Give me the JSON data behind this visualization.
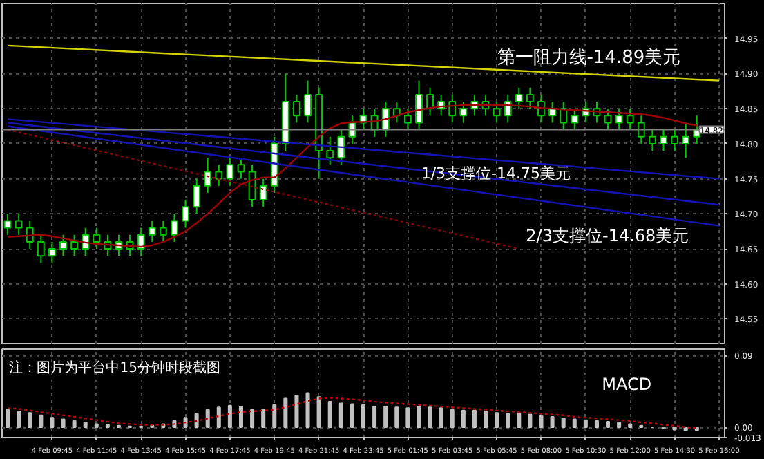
{
  "chart_data": [
    {
      "type": "candlestick",
      "tick_labels": "y",
      "grid": true,
      "color": "#00c800",
      "categories": [
        null,
        null,
        null,
        null,
        null,
        null,
        null,
        null,
        null,
        null,
        null,
        null,
        null,
        null,
        null,
        null,
        null,
        null,
        null,
        null,
        null,
        null,
        null,
        null,
        null,
        null,
        null,
        null,
        null,
        null,
        null,
        null,
        null,
        null,
        null,
        null,
        null,
        null,
        null,
        null,
        null,
        null,
        null,
        null,
        null,
        null,
        null,
        null,
        null,
        null,
        null,
        null,
        null,
        null,
        null,
        null,
        null,
        null,
        null,
        null,
        null,
        null,
        null,
        null,
        null
      ],
      "ohlc": [
        [
          14.68,
          14.7,
          14.67,
          14.69
        ],
        [
          14.69,
          14.7,
          14.67,
          14.68
        ],
        [
          14.68,
          14.69,
          14.65,
          14.66
        ],
        [
          14.66,
          14.67,
          14.63,
          14.64
        ],
        [
          14.64,
          14.66,
          14.63,
          14.65
        ],
        [
          14.65,
          14.67,
          14.64,
          14.66
        ],
        [
          14.66,
          14.67,
          14.64,
          14.65
        ],
        [
          14.65,
          14.68,
          14.64,
          14.67
        ],
        [
          14.67,
          14.68,
          14.65,
          14.66
        ],
        [
          14.66,
          14.67,
          14.64,
          14.65
        ],
        [
          14.65,
          14.67,
          14.64,
          14.66
        ],
        [
          14.66,
          14.67,
          14.64,
          14.65
        ],
        [
          14.65,
          14.68,
          14.64,
          14.67
        ],
        [
          14.67,
          14.69,
          14.66,
          14.68
        ],
        [
          14.68,
          14.69,
          14.66,
          14.67
        ],
        [
          14.67,
          14.7,
          14.66,
          14.69
        ],
        [
          14.69,
          14.72,
          14.68,
          14.71
        ],
        [
          14.71,
          14.75,
          14.7,
          14.74
        ],
        [
          14.74,
          14.78,
          14.73,
          14.76
        ],
        [
          14.76,
          14.77,
          14.74,
          14.75
        ],
        [
          14.75,
          14.78,
          14.74,
          14.77
        ],
        [
          14.77,
          14.78,
          14.75,
          14.76
        ],
        [
          14.76,
          14.77,
          14.71,
          14.72
        ],
        [
          14.72,
          14.75,
          14.71,
          14.74
        ],
        [
          14.74,
          14.81,
          14.73,
          14.8
        ],
        [
          14.8,
          14.9,
          14.79,
          14.86
        ],
        [
          14.86,
          14.87,
          14.83,
          14.84
        ],
        [
          14.84,
          14.89,
          14.83,
          14.87
        ],
        [
          14.87,
          14.88,
          14.75,
          14.79
        ],
        [
          14.79,
          14.81,
          14.77,
          14.78
        ],
        [
          14.78,
          14.82,
          14.77,
          14.81
        ],
        [
          14.81,
          14.84,
          14.8,
          14.83
        ],
        [
          14.83,
          14.85,
          14.82,
          14.84
        ],
        [
          14.84,
          14.85,
          14.81,
          14.82
        ],
        [
          14.82,
          14.86,
          14.81,
          14.85
        ],
        [
          14.85,
          14.86,
          14.83,
          14.84
        ],
        [
          14.84,
          14.85,
          14.82,
          14.83
        ],
        [
          14.83,
          14.89,
          14.82,
          14.87
        ],
        [
          14.87,
          14.88,
          14.84,
          14.85
        ],
        [
          14.85,
          14.87,
          14.84,
          14.86
        ],
        [
          14.86,
          14.87,
          14.83,
          14.84
        ],
        [
          14.84,
          14.86,
          14.83,
          14.85
        ],
        [
          14.85,
          14.87,
          14.84,
          14.86
        ],
        [
          14.86,
          14.87,
          14.84,
          14.85
        ],
        [
          14.85,
          14.86,
          14.83,
          14.84
        ],
        [
          14.84,
          14.87,
          14.83,
          14.86
        ],
        [
          14.86,
          14.88,
          14.85,
          14.87
        ],
        [
          14.87,
          14.88,
          14.85,
          14.86
        ],
        [
          14.86,
          14.87,
          14.83,
          14.84
        ],
        [
          14.84,
          14.86,
          14.83,
          14.85
        ],
        [
          14.85,
          14.86,
          14.82,
          14.83
        ],
        [
          14.83,
          14.85,
          14.82,
          14.84
        ],
        [
          14.84,
          14.86,
          14.83,
          14.85
        ],
        [
          14.85,
          14.86,
          14.83,
          14.84
        ],
        [
          14.84,
          14.85,
          14.82,
          14.83
        ],
        [
          14.83,
          14.85,
          14.82,
          14.84
        ],
        [
          14.84,
          14.85,
          14.82,
          14.83
        ],
        [
          14.83,
          14.84,
          14.8,
          14.81
        ],
        [
          14.81,
          14.82,
          14.79,
          14.8
        ],
        [
          14.8,
          14.82,
          14.79,
          14.81
        ],
        [
          14.81,
          14.82,
          14.79,
          14.8
        ],
        [
          14.8,
          14.83,
          14.78,
          14.81
        ],
        [
          14.81,
          14.84,
          14.8,
          14.82
        ],
        null,
        null
      ],
      "series": [
        {
          "type": "line",
          "color": "#a00000",
          "values": [
            14.667,
            14.668,
            14.669,
            14.67,
            14.668,
            14.665,
            14.662,
            14.659,
            14.657,
            14.656,
            14.655,
            14.654,
            14.653,
            14.655,
            14.66,
            14.667,
            14.675,
            14.687,
            14.7,
            14.715,
            14.73,
            14.742,
            14.748,
            14.752,
            14.752,
            14.765,
            14.78,
            14.795,
            14.81,
            14.822,
            14.829,
            14.831,
            14.831,
            14.832,
            14.835,
            14.84,
            14.845,
            14.848,
            14.851,
            14.853,
            14.854,
            14.855,
            14.855,
            14.855,
            14.855,
            14.855,
            14.854,
            14.853,
            14.851,
            14.85,
            14.849,
            14.848,
            14.847,
            14.846,
            14.845,
            14.844,
            14.843,
            14.842,
            14.84,
            14.837,
            14.833,
            14.829,
            14.826,
            null,
            null
          ]
        },
        {
          "type": "line",
          "color": "#d4d400",
          "values": [
            14.94,
            null,
            null,
            null,
            null,
            null,
            null,
            null,
            null,
            null,
            null,
            null,
            null,
            null,
            null,
            null,
            null,
            null,
            null,
            null,
            null,
            null,
            null,
            null,
            null,
            null,
            null,
            null,
            null,
            null,
            null,
            null,
            null,
            null,
            null,
            null,
            null,
            null,
            null,
            null,
            null,
            null,
            null,
            null,
            null,
            null,
            null,
            null,
            null,
            null,
            null,
            null,
            null,
            null,
            null,
            null,
            null,
            null,
            null,
            null,
            null,
            null,
            null,
            null,
            14.89
          ]
        },
        {
          "type": "line",
          "color": "#1414b4",
          "values": [
            14.835,
            null,
            null,
            null,
            null,
            null,
            null,
            null,
            null,
            null,
            null,
            null,
            null,
            null,
            null,
            null,
            null,
            null,
            null,
            null,
            null,
            null,
            null,
            null,
            null,
            null,
            null,
            null,
            null,
            null,
            null,
            null,
            null,
            null,
            null,
            null,
            null,
            null,
            null,
            null,
            null,
            null,
            null,
            null,
            null,
            null,
            null,
            null,
            null,
            null,
            null,
            null,
            null,
            null,
            null,
            null,
            null,
            null,
            null,
            null,
            null,
            null,
            null,
            null,
            14.75
          ]
        },
        {
          "type": "line",
          "color": "#1414b4",
          "values": [
            14.83,
            null,
            null,
            null,
            null,
            null,
            null,
            null,
            null,
            null,
            null,
            null,
            null,
            null,
            null,
            null,
            null,
            null,
            null,
            null,
            null,
            null,
            null,
            null,
            null,
            null,
            null,
            null,
            null,
            null,
            null,
            null,
            null,
            null,
            null,
            null,
            null,
            null,
            null,
            null,
            null,
            null,
            null,
            null,
            null,
            null,
            null,
            null,
            null,
            null,
            null,
            null,
            null,
            null,
            null,
            null,
            null,
            null,
            null,
            null,
            null,
            null,
            null,
            null,
            14.713
          ]
        },
        {
          "type": "line",
          "color": "#1414b4",
          "values": [
            14.825,
            null,
            null,
            null,
            null,
            null,
            null,
            null,
            null,
            null,
            null,
            null,
            null,
            null,
            null,
            null,
            null,
            null,
            null,
            null,
            null,
            null,
            null,
            null,
            null,
            null,
            null,
            null,
            null,
            null,
            null,
            null,
            null,
            null,
            null,
            null,
            null,
            null,
            null,
            null,
            null,
            null,
            null,
            null,
            null,
            null,
            null,
            null,
            null,
            null,
            null,
            null,
            null,
            null,
            null,
            null,
            null,
            null,
            null,
            null,
            null,
            null,
            null,
            null,
            14.683
          ]
        },
        {
          "type": "line",
          "color": "#8b0000",
          "line_style": "dotted",
          "values": [
            14.82,
            null,
            null,
            null,
            null,
            null,
            null,
            null,
            null,
            null,
            null,
            null,
            null,
            null,
            null,
            null,
            null,
            null,
            null,
            null,
            null,
            null,
            null,
            null,
            null,
            null,
            null,
            null,
            null,
            null,
            null,
            null,
            null,
            null,
            null,
            null,
            null,
            null,
            null,
            null,
            null,
            null,
            null,
            null,
            null,
            null,
            14.65,
            null,
            null,
            null,
            null,
            null,
            null,
            null,
            null,
            null,
            null,
            null,
            null,
            null,
            null,
            null,
            null,
            null,
            null
          ]
        }
      ],
      "ylim": [
        14.515,
        15.0
      ],
      "yticks": [
        14.55,
        {
          "value": 14.6,
          "label": "14.60"
        },
        14.65,
        {
          "value": 14.7,
          "label": "14.70"
        },
        14.75,
        {
          "value": 14.8,
          "label": "14.80"
        },
        14.85,
        {
          "value": 14.9,
          "label": "14.90"
        },
        14.95
      ],
      "ref_lines": [
        {
          "axis": "y",
          "value": 14.82,
          "label": "14.82",
          "color": "#808080"
        }
      ],
      "annotations": [
        "第一阻力线-14.89美元",
        "1/3支撑位-14.75美元",
        "2/3支撑位-14.68美元"
      ]
    },
    {
      "type": "bar",
      "title": "MACD",
      "grid": true,
      "categories": [
        null,
        null,
        null,
        null,
        "4 Feb 09:45",
        null,
        null,
        null,
        "4 Feb 11:45",
        null,
        null,
        null,
        "4 Feb 13:45",
        null,
        null,
        null,
        "4 Feb 15:45",
        null,
        null,
        null,
        "4 Feb 17:45",
        null,
        null,
        null,
        "4 Feb 19:45",
        null,
        null,
        null,
        "4 Feb 21:45",
        null,
        null,
        null,
        "4 Feb 23:45",
        null,
        null,
        null,
        "5 Feb 01:45",
        null,
        null,
        null,
        "5 Feb 03:45",
        null,
        null,
        null,
        "5 Feb 05:45",
        null,
        null,
        null,
        "5 Feb 08:00",
        null,
        null,
        null,
        "5 Feb 10:30",
        null,
        null,
        null,
        "5 Feb 12:00",
        null,
        null,
        null,
        "5 Feb 14:30",
        null,
        null,
        null,
        "5 Feb 16:00"
      ],
      "series": [
        {
          "type": "bar",
          "color": "#c0c0c0",
          "values": [
            0.022,
            0.02,
            0.018,
            0.015,
            0.012,
            0.01,
            0.008,
            0.006,
            0.004,
            0.003,
            0.002,
            0.001,
            0.001,
            0.002,
            0.004,
            0.008,
            0.012,
            0.017,
            0.022,
            0.025,
            0.027,
            0.026,
            0.022,
            0.022,
            0.028,
            0.036,
            0.04,
            0.043,
            0.038,
            0.032,
            0.03,
            0.029,
            0.028,
            0.026,
            0.026,
            0.025,
            0.024,
            0.026,
            0.025,
            0.024,
            0.022,
            0.021,
            0.021,
            0.02,
            0.018,
            0.017,
            0.017,
            0.016,
            0.014,
            0.013,
            0.011,
            0.01,
            0.009,
            0.008,
            0.007,
            0.006,
            0.004,
            0.002,
            0.0,
            -0.001,
            -0.003,
            -0.004,
            -0.004,
            null,
            null
          ]
        },
        {
          "type": "line",
          "color": "#c00000",
          "line_style": "dotted",
          "values": [
            0.024,
            0.023,
            0.021,
            0.019,
            0.017,
            0.015,
            0.013,
            0.011,
            0.009,
            0.007,
            0.005,
            0.004,
            0.003,
            0.003,
            0.003,
            0.004,
            0.006,
            0.008,
            0.011,
            0.014,
            0.017,
            0.019,
            0.02,
            0.021,
            0.022,
            0.025,
            0.029,
            0.033,
            0.036,
            0.037,
            0.036,
            0.035,
            0.034,
            0.032,
            0.031,
            0.03,
            0.029,
            0.028,
            0.027,
            0.026,
            0.025,
            0.024,
            0.023,
            0.022,
            0.021,
            0.02,
            0.019,
            0.018,
            0.017,
            0.016,
            0.015,
            0.013,
            0.012,
            0.011,
            0.01,
            0.009,
            0.008,
            0.006,
            0.005,
            0.003,
            0.002,
            0.0,
            -0.001,
            null,
            null
          ]
        }
      ],
      "ylim": [
        -0.013,
        0.098
      ],
      "yticks": [
        {
          "value": 0.09,
          "label": "0.09"
        },
        {
          "value": 0,
          "label": "0.00"
        },
        -0.013
      ],
      "annotations": [
        "注：图片为平台中15分钟时段截图"
      ]
    }
  ]
}
